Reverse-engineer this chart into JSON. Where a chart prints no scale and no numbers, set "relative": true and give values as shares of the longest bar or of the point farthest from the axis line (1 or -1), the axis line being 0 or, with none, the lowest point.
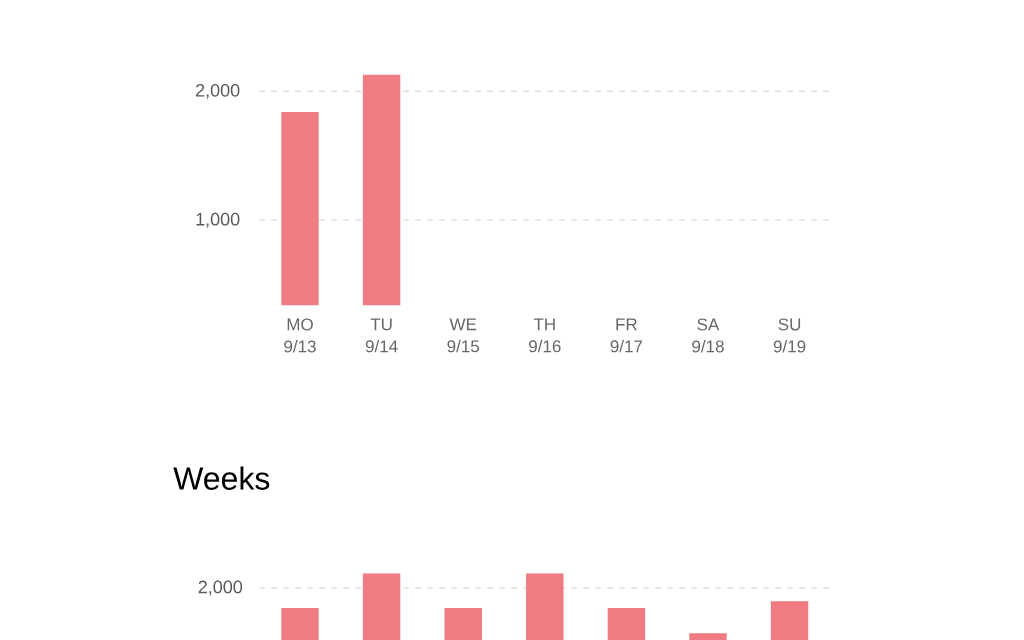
{
  "chart_data": [
    {
      "type": "bar",
      "categories": [
        "MO 9/13",
        "TU 9/14",
        "WE 9/15",
        "TH 9/16",
        "FR 9/17",
        "SA 9/18",
        "SU 9/19"
      ],
      "values": [
        1840,
        2130,
        null,
        null,
        null,
        null,
        null
      ],
      "color": "#f07b82",
      "ylim": [
        340,
        2130
      ],
      "yticks": [
        {
          "value": 1000,
          "label": "1,000"
        },
        {
          "value": 2000,
          "label": "2,000"
        }
      ],
      "grid": "y"
    },
    {
      "type": "bar",
      "title": "Weeks",
      "relative": true,
      "categories": [
        null,
        null,
        null,
        null,
        null,
        null,
        null
      ],
      "values": [
        0.48,
        1,
        0.48,
        1,
        0.48,
        0.1,
        0.58
      ],
      "color": "#f07b82",
      "ref_lines": [
        {
          "axis": "y",
          "value": 0.78,
          "line_style": "dashed"
        }
      ],
      "annotations": [
        "2,000"
      ]
    }
  ]
}
